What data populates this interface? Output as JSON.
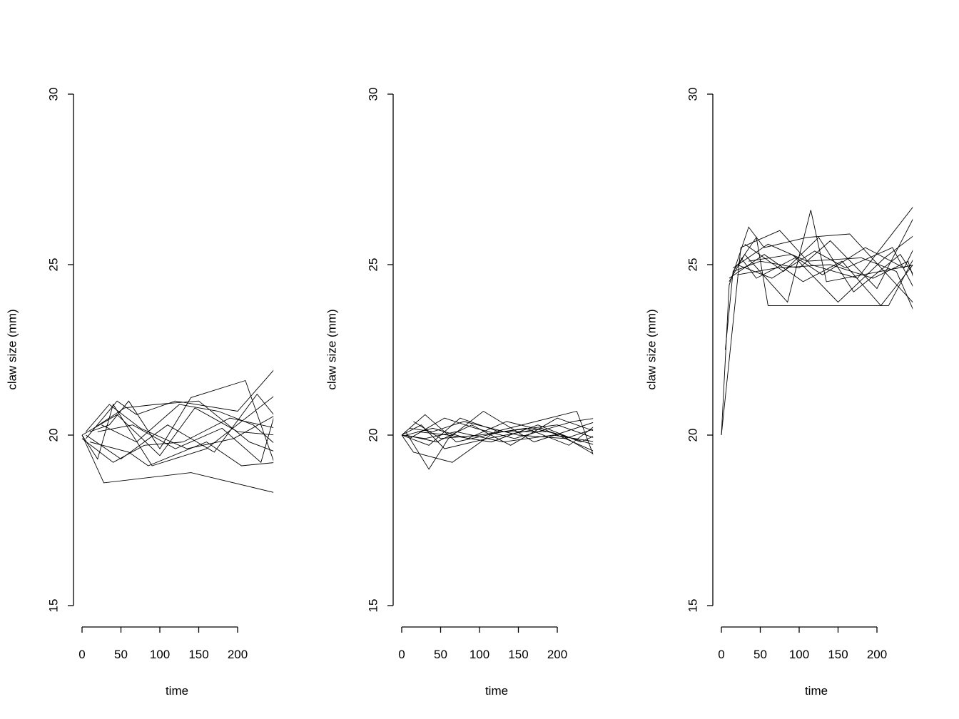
{
  "chart_data": [
    {
      "type": "line",
      "xlabel": "time",
      "ylabel": "claw size (mm)",
      "xticks": [
        0,
        50,
        100,
        150,
        200
      ],
      "yticks": [
        15,
        20,
        25,
        30
      ],
      "xlim": [
        0,
        246
      ],
      "ylim": [
        15,
        30
      ],
      "line_color": "#000000",
      "series": [
        {
          "points": [
            [
              0,
              20
            ],
            [
              28,
              18.6
            ],
            [
              140,
              18.9
            ],
            [
              250,
              18.3
            ]
          ]
        },
        {
          "points": [
            [
              5,
              19.9
            ],
            [
              45,
              21
            ],
            [
              70,
              20.6
            ],
            [
              120,
              21
            ],
            [
              200,
              20.7
            ],
            [
              250,
              22
            ]
          ]
        },
        {
          "points": [
            [
              0,
              20
            ],
            [
              20,
              19.3
            ],
            [
              40,
              20.9
            ],
            [
              90,
              19.1
            ],
            [
              160,
              19.6
            ],
            [
              250,
              21.2
            ]
          ]
        },
        {
          "points": [
            [
              10,
              20.1
            ],
            [
              35,
              20.3
            ],
            [
              60,
              21
            ],
            [
              100,
              19.6
            ],
            [
              140,
              21.1
            ],
            [
              210,
              21.6
            ],
            [
              250,
              19
            ]
          ]
        },
        {
          "points": [
            [
              0,
              19.9
            ],
            [
              40,
              19.2
            ],
            [
              80,
              19.7
            ],
            [
              130,
              19.8
            ],
            [
              190,
              20.5
            ],
            [
              250,
              20.2
            ]
          ]
        },
        {
          "points": [
            [
              15,
              20.2
            ],
            [
              55,
              20.8
            ],
            [
              95,
              20.9
            ],
            [
              150,
              21
            ],
            [
              215,
              19.8
            ],
            [
              250,
              19.5
            ]
          ]
        },
        {
          "points": [
            [
              5,
              20
            ],
            [
              50,
              19.3
            ],
            [
              110,
              20.3
            ],
            [
              170,
              19.5
            ],
            [
              225,
              21.2
            ],
            [
              250,
              20.5
            ]
          ]
        },
        {
          "points": [
            [
              20,
              20.1
            ],
            [
              65,
              20.3
            ],
            [
              120,
              19.6
            ],
            [
              180,
              20.2
            ],
            [
              230,
              19.2
            ],
            [
              250,
              20.8
            ]
          ]
        },
        {
          "points": [
            [
              10,
              19.8
            ],
            [
              60,
              19.5
            ],
            [
              85,
              19.1
            ],
            [
              160,
              19.8
            ],
            [
              205,
              19.1
            ],
            [
              250,
              19.2
            ]
          ]
        },
        {
          "points": [
            [
              0,
              20
            ],
            [
              45,
              20.6
            ],
            [
              100,
              19.4
            ],
            [
              145,
              20.8
            ],
            [
              200,
              20.1
            ],
            [
              250,
              20
            ]
          ]
        },
        {
          "points": [
            [
              25,
              20.3
            ],
            [
              70,
              19.8
            ],
            [
              125,
              20.9
            ],
            [
              175,
              20.7
            ],
            [
              220,
              20.3
            ],
            [
              250,
              19.7
            ]
          ]
        },
        {
          "points": [
            [
              5,
              20.1
            ],
            [
              35,
              20.9
            ],
            [
              75,
              20.2
            ],
            [
              135,
              19.6
            ],
            [
              195,
              19.9
            ],
            [
              250,
              20.6
            ]
          ]
        }
      ]
    },
    {
      "type": "line",
      "xlabel": "time",
      "ylabel": "claw size (mm)",
      "xticks": [
        0,
        50,
        100,
        150,
        200
      ],
      "yticks": [
        15,
        20,
        25,
        30
      ],
      "xlim": [
        0,
        246
      ],
      "ylim": [
        15,
        30
      ],
      "line_color": "#000000",
      "series": [
        {
          "points": [
            [
              0,
              20
            ],
            [
              30,
              20.6
            ],
            [
              70,
              19.8
            ],
            [
              130,
              20.1
            ],
            [
              200,
              20.3
            ],
            [
              250,
              19.9
            ]
          ]
        },
        {
          "points": [
            [
              5,
              20.1
            ],
            [
              35,
              19
            ],
            [
              60,
              19.9
            ],
            [
              105,
              20.7
            ],
            [
              170,
              19.8
            ],
            [
              250,
              20.4
            ]
          ]
        },
        {
          "points": [
            [
              0,
              20
            ],
            [
              15,
              19.5
            ],
            [
              65,
              19.2
            ],
            [
              120,
              20.1
            ],
            [
              225,
              20.7
            ],
            [
              250,
              19.2
            ]
          ]
        },
        {
          "points": [
            [
              10,
              20.2
            ],
            [
              40,
              20.1
            ],
            [
              80,
              20.4
            ],
            [
              150,
              20
            ],
            [
              210,
              19.9
            ],
            [
              250,
              20.2
            ]
          ]
        },
        {
          "points": [
            [
              0,
              20
            ],
            [
              25,
              20.3
            ],
            [
              55,
              19.6
            ],
            [
              110,
              19.9
            ],
            [
              180,
              20.2
            ],
            [
              250,
              19.5
            ]
          ]
        },
        {
          "points": [
            [
              5,
              20
            ],
            [
              45,
              19.8
            ],
            [
              90,
              20.3
            ],
            [
              140,
              19.7
            ],
            [
              200,
              20.5
            ],
            [
              250,
              20.1
            ]
          ]
        },
        {
          "points": [
            [
              15,
              20.4
            ],
            [
              50,
              19.9
            ],
            [
              100,
              20
            ],
            [
              160,
              20.2
            ],
            [
              215,
              19.7
            ],
            [
              250,
              20.3
            ]
          ]
        },
        {
          "points": [
            [
              0,
              20
            ],
            [
              35,
              19.7
            ],
            [
              75,
              20.5
            ],
            [
              125,
              20.1
            ],
            [
              190,
              20.1
            ],
            [
              250,
              19.7
            ]
          ]
        },
        {
          "points": [
            [
              20,
              20.1
            ],
            [
              60,
              20
            ],
            [
              115,
              19.8
            ],
            [
              175,
              20.3
            ],
            [
              230,
              19.8
            ],
            [
              250,
              20
            ]
          ]
        },
        {
          "points": [
            [
              5,
              20
            ],
            [
              40,
              20.2
            ],
            [
              85,
              19.9
            ],
            [
              135,
              20.4
            ],
            [
              205,
              20
            ],
            [
              250,
              19.4
            ]
          ]
        },
        {
          "points": [
            [
              10,
              19.9
            ],
            [
              55,
              20.5
            ],
            [
              95,
              20.2
            ],
            [
              145,
              19.9
            ],
            [
              220,
              20.4
            ],
            [
              250,
              20.5
            ]
          ]
        },
        {
          "points": [
            [
              0,
              20
            ],
            [
              30,
              19.9
            ],
            [
              70,
              20.1
            ],
            [
              130,
              19.8
            ],
            [
              195,
              20
            ],
            [
              250,
              19.8
            ]
          ]
        }
      ]
    },
    {
      "type": "line",
      "xlabel": "time",
      "ylabel": "claw size (mm)",
      "xticks": [
        0,
        50,
        100,
        150,
        200
      ],
      "yticks": [
        15,
        20,
        25,
        30
      ],
      "xlim": [
        0,
        246
      ],
      "ylim": [
        15,
        30
      ],
      "line_color": "#000000",
      "series": [
        {
          "points": [
            [
              0,
              20
            ],
            [
              10,
              24.4
            ],
            [
              35,
              26.1
            ],
            [
              55,
              25.5
            ],
            [
              110,
              25.8
            ],
            [
              165,
              25.9
            ],
            [
              250,
              23.8
            ]
          ]
        },
        {
          "points": [
            [
              5,
              22.5
            ],
            [
              15,
              24.8
            ],
            [
              45,
              25.8
            ],
            [
              60,
              23.8
            ],
            [
              215,
              23.8
            ],
            [
              250,
              25.3
            ]
          ]
        },
        {
          "points": [
            [
              0,
              20
            ],
            [
              25,
              25.5
            ],
            [
              75,
              26
            ],
            [
              115,
              25
            ],
            [
              175,
              24.6
            ],
            [
              250,
              26.8
            ]
          ]
        },
        {
          "points": [
            [
              10,
              24.5
            ],
            [
              30,
              25.3
            ],
            [
              85,
              23.9
            ],
            [
              115,
              26.6
            ],
            [
              135,
              24.5
            ],
            [
              250,
              25
            ]
          ]
        },
        {
          "points": [
            [
              15,
              24.8
            ],
            [
              50,
              25.1
            ],
            [
              100,
              24.9
            ],
            [
              140,
              25.7
            ],
            [
              200,
              24.3
            ],
            [
              250,
              26.5
            ]
          ]
        },
        {
          "points": [
            [
              20,
              25
            ],
            [
              65,
              24.6
            ],
            [
              120,
              25.4
            ],
            [
              160,
              24.9
            ],
            [
              220,
              25.5
            ],
            [
              250,
              24.2
            ]
          ]
        },
        {
          "points": [
            [
              25,
              25.2
            ],
            [
              45,
              24.6
            ],
            [
              95,
              25.2
            ],
            [
              150,
              23.9
            ],
            [
              210,
              25.2
            ],
            [
              250,
              25.9
            ]
          ]
        },
        {
          "points": [
            [
              10,
              24.6
            ],
            [
              55,
              25.3
            ],
            [
              105,
              24.5
            ],
            [
              155,
              25.1
            ],
            [
              205,
              23.8
            ],
            [
              250,
              25.1
            ]
          ]
        },
        {
          "points": [
            [
              30,
              25.6
            ],
            [
              80,
              24.8
            ],
            [
              125,
              25.8
            ],
            [
              170,
              24.2
            ],
            [
              230,
              25.3
            ],
            [
              250,
              24.6
            ]
          ]
        },
        {
          "points": [
            [
              15,
              24.9
            ],
            [
              60,
              25.6
            ],
            [
              110,
              25.1
            ],
            [
              180,
              25.2
            ],
            [
              225,
              24.8
            ],
            [
              250,
              23.5
            ]
          ]
        },
        {
          "points": [
            [
              35,
              25.1
            ],
            [
              90,
              25.3
            ],
            [
              130,
              24.7
            ],
            [
              185,
              25.5
            ],
            [
              235,
              24.9
            ],
            [
              250,
              25.6
            ]
          ]
        },
        {
          "points": [
            [
              20,
              24.7
            ],
            [
              70,
              24.9
            ],
            [
              140,
              25
            ],
            [
              195,
              24.6
            ],
            [
              240,
              25.1
            ],
            [
              250,
              24.4
            ]
          ]
        }
      ]
    }
  ]
}
